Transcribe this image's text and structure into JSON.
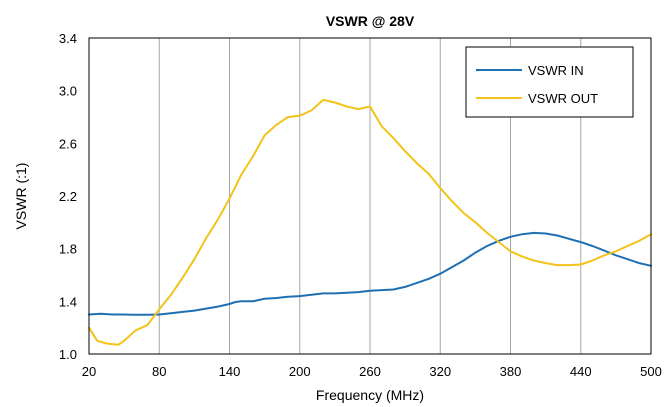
{
  "chart_data": {
    "type": "line",
    "title": "VSWR @ 28V",
    "xlabel": "Frequency (MHz)",
    "ylabel": "VSWR (:1)",
    "xlim": [
      20,
      500
    ],
    "ylim": [
      1.0,
      3.4
    ],
    "x_ticks": [
      "20",
      "80",
      "140",
      "200",
      "260",
      "320",
      "380",
      "440",
      "500"
    ],
    "y_ticks": [
      "1.0",
      "1.4",
      "1.8",
      "2.2",
      "2.6",
      "3.0",
      "3.4"
    ],
    "grid": "vertical",
    "legend_position": "top-right",
    "series": [
      {
        "name": "VSWR IN",
        "color": "#1f6fb4",
        "x": [
          20,
          30,
          40,
          50,
          60,
          70,
          80,
          90,
          100,
          110,
          120,
          130,
          140,
          145,
          150,
          160,
          170,
          180,
          190,
          200,
          210,
          220,
          230,
          240,
          250,
          260,
          270,
          280,
          290,
          300,
          310,
          320,
          330,
          340,
          350,
          360,
          370,
          380,
          390,
          400,
          410,
          420,
          430,
          440,
          450,
          460,
          470,
          480,
          490,
          500
        ],
        "values": [
          1.3,
          1.305,
          1.3,
          1.3,
          1.298,
          1.298,
          1.3,
          1.31,
          1.32,
          1.33,
          1.345,
          1.36,
          1.38,
          1.395,
          1.4,
          1.4,
          1.42,
          1.425,
          1.435,
          1.44,
          1.45,
          1.46,
          1.46,
          1.465,
          1.47,
          1.48,
          1.485,
          1.49,
          1.51,
          1.54,
          1.57,
          1.61,
          1.66,
          1.71,
          1.77,
          1.82,
          1.86,
          1.89,
          1.91,
          1.92,
          1.915,
          1.9,
          1.875,
          1.85,
          1.82,
          1.785,
          1.75,
          1.72,
          1.69,
          1.67
        ]
      },
      {
        "name": "VSWR OUT",
        "color": "#f2c318",
        "x": [
          20,
          27,
          35,
          45,
          50,
          60,
          70,
          80,
          90,
          100,
          110,
          120,
          130,
          140,
          150,
          160,
          170,
          180,
          190,
          200,
          210,
          220,
          230,
          240,
          250,
          260,
          270,
          280,
          290,
          300,
          310,
          320,
          330,
          340,
          350,
          360,
          370,
          380,
          390,
          400,
          410,
          420,
          430,
          440,
          450,
          460,
          470,
          480,
          490,
          500
        ],
        "values": [
          1.2,
          1.1,
          1.08,
          1.07,
          1.1,
          1.18,
          1.22,
          1.34,
          1.45,
          1.58,
          1.72,
          1.88,
          2.02,
          2.18,
          2.36,
          2.5,
          2.66,
          2.74,
          2.8,
          2.81,
          2.85,
          2.93,
          2.91,
          2.88,
          2.86,
          2.88,
          2.73,
          2.64,
          2.54,
          2.45,
          2.37,
          2.26,
          2.16,
          2.07,
          2.0,
          1.92,
          1.85,
          1.78,
          1.74,
          1.71,
          1.69,
          1.675,
          1.675,
          1.68,
          1.71,
          1.75,
          1.78,
          1.82,
          1.86,
          1.91
        ]
      }
    ]
  }
}
